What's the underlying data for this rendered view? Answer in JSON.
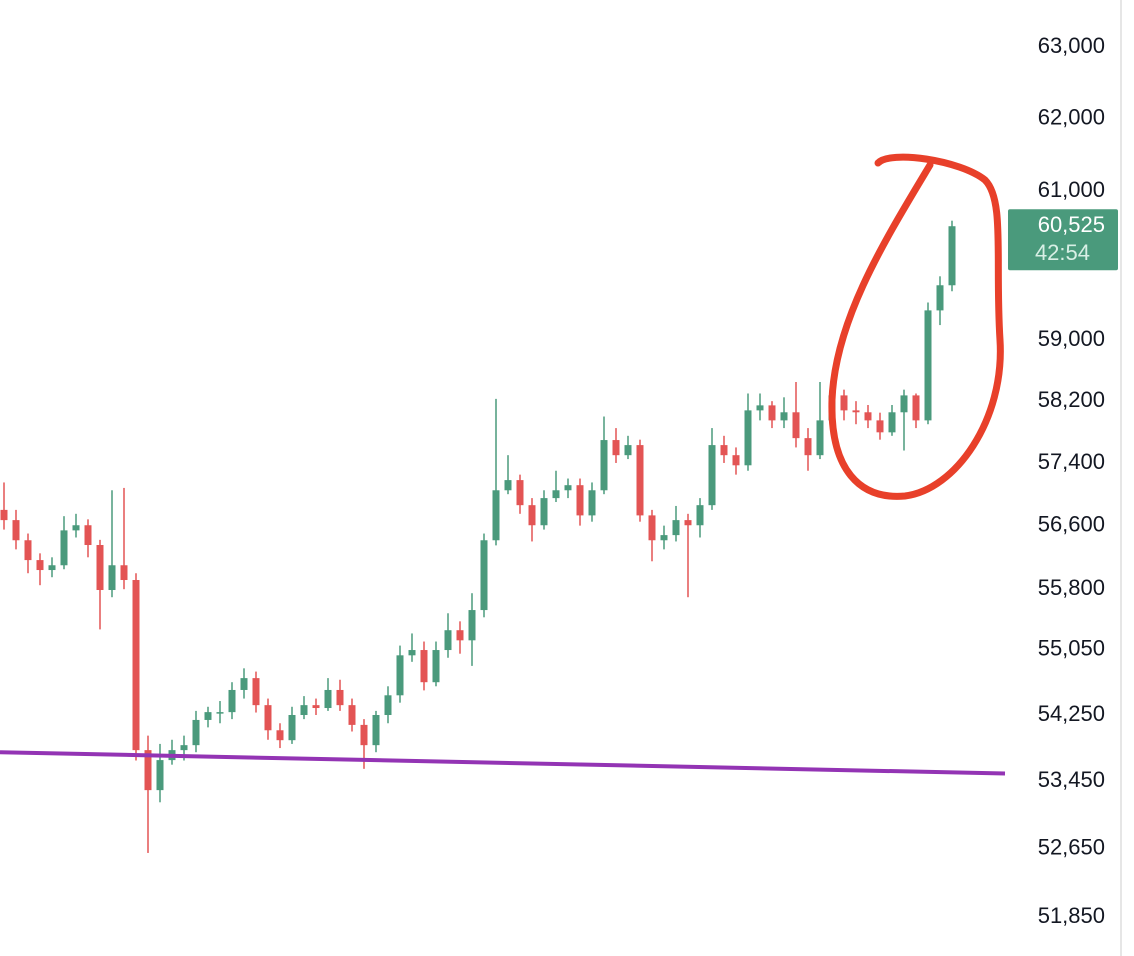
{
  "chart_data": {
    "type": "candlestick",
    "log_scale": true,
    "ylim": [
      51400,
      63670
    ],
    "yticks": [
      {
        "value": 63000,
        "label": "63,000"
      },
      {
        "value": 62000,
        "label": "62,000"
      },
      {
        "value": 61000,
        "label": "61,000"
      },
      {
        "value": 59000,
        "label": "59,000"
      },
      {
        "value": 58200,
        "label": "58,200"
      },
      {
        "value": 57400,
        "label": "57,400"
      },
      {
        "value": 56600,
        "label": "56,600"
      },
      {
        "value": 55800,
        "label": "55,800"
      },
      {
        "value": 55050,
        "label": "55,050"
      },
      {
        "value": 54250,
        "label": "54,250"
      },
      {
        "value": 53450,
        "label": "53,450"
      },
      {
        "value": 52650,
        "label": "52,650"
      },
      {
        "value": 51850,
        "label": "51,850"
      }
    ],
    "up_color": "#4a9a7c",
    "down_color": "#e35454",
    "open": [
      56800,
      56670,
      56415,
      56165,
      56040,
      56100,
      56540,
      56605,
      56355,
      55790,
      56100,
      55915,
      53825,
      53345,
      53705,
      53825,
      53885,
      54190,
      54285,
      54285,
      54555,
      54700,
      54370,
      54065,
      53945,
      54250,
      54370,
      54335,
      54555,
      54370,
      54130,
      53885,
      54250,
      54490,
      54980,
      55045,
      54650,
      55045,
      55290,
      55165,
      55540,
      56415,
      57050,
      57180,
      56860,
      56605,
      56950,
      57050,
      57115,
      56730,
      57050,
      57695,
      57500,
      57630,
      56730,
      56415,
      56480,
      56670,
      56605,
      56860,
      57630,
      57500,
      57370,
      58080,
      58145,
      57950,
      58055,
      57720,
      57500,
      57950,
      58275,
      58080,
      58055,
      57950,
      57795,
      58055,
      58275,
      57950,
      59395,
      59730
    ],
    "high": [
      57150,
      56800,
      56500,
      56250,
      56200,
      56720,
      56750,
      56680,
      56420,
      57050,
      57080,
      56000,
      54000,
      53900,
      53950,
      54000,
      54300,
      54350,
      54420,
      54650,
      54820,
      54780,
      54450,
      54150,
      54350,
      54480,
      54450,
      54700,
      54680,
      54450,
      54200,
      54300,
      54600,
      55100,
      55250,
      55150,
      55150,
      55500,
      55400,
      55750,
      56500,
      58230,
      57500,
      57250,
      56950,
      57050,
      57300,
      57200,
      57200,
      57150,
      58000,
      57850,
      57750,
      57700,
      56800,
      56600,
      56850,
      56750,
      56950,
      57850,
      57750,
      57600,
      58300,
      58300,
      58200,
      58250,
      58450,
      57850,
      58450,
      58350,
      58350,
      58200,
      58150,
      58050,
      58150,
      58350,
      58300,
      59500,
      59850,
      60600
    ],
    "low": [
      56550,
      56300,
      56000,
      55850,
      55950,
      56050,
      56450,
      56200,
      55300,
      55700,
      55800,
      53700,
      52600,
      53200,
      53650,
      53700,
      53800,
      54100,
      54150,
      54200,
      54450,
      54280,
      53950,
      53850,
      53900,
      54200,
      54250,
      54300,
      54300,
      54050,
      53600,
      53800,
      54150,
      54400,
      54900,
      54550,
      54600,
      54950,
      55000,
      54850,
      55450,
      56350,
      57000,
      56750,
      56400,
      56550,
      56900,
      56950,
      56600,
      56650,
      57000,
      57400,
      57450,
      56650,
      56150,
      56300,
      56400,
      55700,
      56450,
      56800,
      57400,
      57250,
      57300,
      57950,
      57850,
      57850,
      57600,
      57300,
      57450,
      57850,
      57950,
      57900,
      57850,
      57700,
      57750,
      57560,
      57850,
      57900,
      59200,
      59650
    ],
    "close": [
      56670,
      56415,
      56165,
      56040,
      56100,
      56540,
      56605,
      56355,
      55790,
      56100,
      55915,
      53825,
      53345,
      53705,
      53825,
      53885,
      54190,
      54285,
      54285,
      54555,
      54700,
      54370,
      54065,
      53945,
      54250,
      54370,
      54335,
      54555,
      54370,
      54130,
      53885,
      54250,
      54490,
      54980,
      55045,
      54650,
      55045,
      55290,
      55165,
      55540,
      56415,
      57050,
      57180,
      56860,
      56605,
      56950,
      57050,
      57115,
      56730,
      57050,
      57695,
      57500,
      57630,
      56730,
      56415,
      56480,
      56670,
      56605,
      56860,
      57630,
      57500,
      57370,
      58080,
      58145,
      57950,
      58055,
      57720,
      57500,
      57950,
      58275,
      58080,
      58055,
      57950,
      57795,
      58055,
      58275,
      57950,
      59395,
      59730,
      60525
    ],
    "trendline": {
      "values": [
        53800,
        53544
      ],
      "color": "#9334b4"
    },
    "price_label": {
      "price": {
        "value": 60525,
        "label": "60,525"
      },
      "countdown": "42:54",
      "color": "#4a9a7c"
    }
  }
}
